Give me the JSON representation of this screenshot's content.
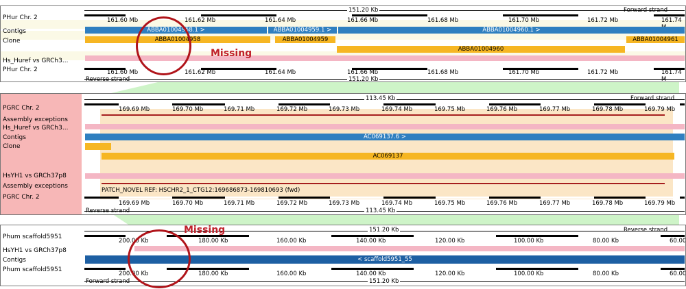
{
  "panel1": {
    "species_top": "PHur Chr. 2",
    "species_bottom": "PHur Chr. 2",
    "rows": [
      "Contigs",
      "Clone",
      "Hs_Huref vs GRCh3..."
    ],
    "length": "151.20 Kb",
    "strand_top": "Forward strand",
    "strand_bottom": "Reverse strand",
    "ticks": [
      "161.60 Mb",
      "161.62 Mb",
      "161.64 Mb",
      "161.66 Mb",
      "161.68 Mb",
      "161.70 Mb",
      "161.72 Mb",
      "161.74 M"
    ],
    "contigs": [
      "ABBA01004958.1 >",
      "ABBA01004959.1 >",
      "ABBA01004960.1 >"
    ],
    "clones": [
      "ABBA01004958",
      "ABBA01004959",
      "ABBA01004960",
      "ABBA01004961"
    ]
  },
  "panel2": {
    "species_top": "PGRC Chr. 2",
    "species_bottom": "PGRC Chr. 2",
    "rows": [
      "Assembly exceptions",
      "Hs_Huref vs GRCh3...",
      "Contigs",
      "Clone",
      "HsYH1 vs GRCh37p8",
      "Assembly exceptions"
    ],
    "length": "113.45 Kb",
    "strand_top": "Forward strand",
    "strand_bottom": "Reverse strand",
    "ticks": [
      "169.69 Mb",
      "169.70 Mb",
      "169.71 Mb",
      "169.72 Mb",
      "169.73 Mb",
      "169.74 Mb",
      "169.75 Mb",
      "169.76 Mb",
      "169.77 Mb",
      "169.78 Mb",
      "169.79 Mb"
    ],
    "contig": "AC069137.6 >",
    "clone": "AC069137",
    "patch_label": "PATCH_NOVEL REF: HSCHR2_1_CTG12:169686873-169810693 (fwd)"
  },
  "panel3": {
    "species_top": "Phum scaffold5951",
    "species_bottom": "Phum scaffold5951",
    "rows": [
      "HsYH1 vs GRCh37p8",
      "Contigs"
    ],
    "length": "151.20 Kb",
    "strand_top": "Reverse strand",
    "strand_bottom": "Forward strand",
    "ticks": [
      "200.00 Kb",
      "180.00 Kb",
      "160.00 Kb",
      "140.00 Kb",
      "120.00 Kb",
      "100.00 Kb",
      "80.00 Kb",
      "60.00"
    ],
    "contig": "< scaffold5951_55"
  },
  "annotations": {
    "missing1": "Missing",
    "missing2": "Missing"
  },
  "colors": {
    "contig_blue": "#2f7fc0",
    "clone_yellow": "#f6b623",
    "pink": "#f4b6c4",
    "synteny_green": "#c9f3c2",
    "label_red": "#f7b7b7",
    "annotation_red": "#c0202a"
  }
}
